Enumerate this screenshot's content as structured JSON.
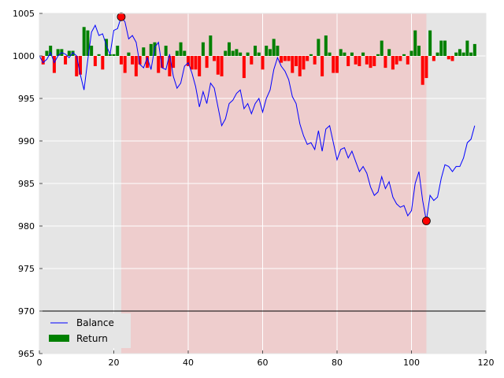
{
  "chart_data": {
    "type": "line",
    "title": "",
    "xlabel": "",
    "ylabel": "",
    "xlim": [
      0,
      120
    ],
    "ylim": [
      965,
      1005
    ],
    "xticks": [
      0,
      20,
      40,
      60,
      80,
      100,
      120
    ],
    "yticks": [
      965,
      970,
      975,
      980,
      985,
      990,
      995,
      1000,
      1005
    ],
    "grid": true,
    "legend_position": "lower-left",
    "reference_line": 970,
    "baseline": 1000,
    "shaded_region": {
      "x_start": 22,
      "x_end": 104,
      "color": "#f4bcbc"
    },
    "markers": [
      {
        "x": 22,
        "y": 1004.6
      },
      {
        "x": 104,
        "y": 980.6
      }
    ],
    "colors": {
      "balance": "#0000ff",
      "return_positive": "#008000",
      "return_negative": "#ff0000",
      "marker": "#ff0000",
      "background": "#e5e5e5"
    },
    "series": [
      {
        "name": "Balance",
        "type": "line",
        "x": [
          0,
          1,
          2,
          3,
          4,
          5,
          6,
          7,
          8,
          9,
          10,
          11,
          12,
          13,
          14,
          15,
          16,
          17,
          18,
          19,
          20,
          21,
          22,
          23,
          24,
          25,
          26,
          27,
          28,
          29,
          30,
          31,
          32,
          33,
          34,
          35,
          36,
          37,
          38,
          39,
          40,
          41,
          42,
          43,
          44,
          45,
          46,
          47,
          48,
          49,
          50,
          51,
          52,
          53,
          54,
          55,
          56,
          57,
          58,
          59,
          60,
          61,
          62,
          63,
          64,
          65,
          66,
          67,
          68,
          69,
          70,
          71,
          72,
          73,
          74,
          75,
          76,
          77,
          78,
          79,
          80,
          81,
          82,
          83,
          84,
          85,
          86,
          87,
          88,
          89,
          90,
          91,
          92,
          93,
          94,
          95,
          96,
          97,
          98,
          99,
          100,
          101,
          102,
          103,
          104,
          105,
          106,
          107,
          108,
          109,
          110,
          111,
          112,
          113,
          114,
          115,
          116,
          117
        ],
        "y": [
          1000.0,
          999.2,
          999.6,
          1000.4,
          999.2,
          1000.0,
          1000.4,
          1000.2,
          999.8,
          1000.4,
          1000.0,
          997.8,
          996.0,
          999.5,
          1002.8,
          1003.6,
          1002.4,
          1002.6,
          1001.2,
          1000.2,
          1003.0,
          1003.2,
          1004.6,
          1004.0,
          1002.0,
          1002.4,
          1001.6,
          999.0,
          998.6,
          999.8,
          998.4,
          1001.0,
          1001.6,
          998.6,
          998.4,
          1000.2,
          997.6,
          996.2,
          996.8,
          998.8,
          999.2,
          998.0,
          996.4,
          994.0,
          995.8,
          994.4,
          996.8,
          996.2,
          994.0,
          991.8,
          992.6,
          994.4,
          994.8,
          995.6,
          996.0,
          993.8,
          994.4,
          993.2,
          994.4,
          995.0,
          993.4,
          995.0,
          996.0,
          998.4,
          999.8,
          998.8,
          998.2,
          997.2,
          995.2,
          994.4,
          992.0,
          990.6,
          989.6,
          989.8,
          989.0,
          991.2,
          988.8,
          991.4,
          991.8,
          989.8,
          987.8,
          989.0,
          989.2,
          988.0,
          988.8,
          987.6,
          986.4,
          987.0,
          986.2,
          984.6,
          983.6,
          984.0,
          985.8,
          984.4,
          985.2,
          983.4,
          982.6,
          982.2,
          982.4,
          981.2,
          981.8,
          985.0,
          986.4,
          983.0,
          980.6,
          983.6,
          983.0,
          983.4,
          985.6,
          987.2,
          987.0,
          986.4,
          987.0,
          987.0,
          988.0,
          989.8,
          990.2,
          991.8
        ]
      },
      {
        "name": "Return",
        "type": "bar",
        "baseline": 1000,
        "x": [
          1,
          2,
          3,
          4,
          5,
          6,
          7,
          8,
          9,
          10,
          11,
          12,
          13,
          14,
          15,
          16,
          17,
          18,
          19,
          20,
          21,
          22,
          23,
          24,
          25,
          26,
          27,
          28,
          29,
          30,
          31,
          32,
          33,
          34,
          35,
          36,
          37,
          38,
          39,
          40,
          41,
          42,
          43,
          44,
          45,
          46,
          47,
          48,
          49,
          50,
          51,
          52,
          53,
          54,
          55,
          56,
          57,
          58,
          59,
          60,
          61,
          62,
          63,
          64,
          65,
          66,
          67,
          68,
          69,
          70,
          71,
          72,
          73,
          74,
          75,
          76,
          77,
          78,
          79,
          80,
          81,
          82,
          83,
          84,
          85,
          86,
          87,
          88,
          89,
          90,
          91,
          92,
          93,
          94,
          95,
          96,
          97,
          98,
          99,
          100,
          101,
          102,
          103,
          104,
          105,
          106,
          107,
          108,
          109,
          110,
          111,
          112,
          113,
          114,
          115,
          116,
          117
        ],
        "values": [
          -1.0,
          0.6,
          1.2,
          -2.0,
          0.8,
          0.8,
          -1.0,
          0.6,
          0.6,
          -2.4,
          -2.2,
          3.4,
          3.0,
          1.2,
          -1.2,
          0.2,
          -1.6,
          2.0,
          0.2,
          0.2,
          1.2,
          -1.0,
          -2.0,
          0.4,
          -1.0,
          -2.4,
          -1.0,
          1.0,
          -1.4,
          1.4,
          1.6,
          -2.0,
          -1.4,
          1.2,
          -2.4,
          -1.4,
          0.6,
          1.6,
          0.6,
          -1.2,
          -1.6,
          -1.6,
          -2.4,
          1.6,
          -1.4,
          2.4,
          -0.6,
          -2.2,
          -2.4,
          0.6,
          1.6,
          0.6,
          0.8,
          0.4,
          -2.6,
          0.4,
          -1.0,
          1.2,
          0.4,
          -1.6,
          1.2,
          0.8,
          2.0,
          1.2,
          -0.8,
          -0.6,
          -0.6,
          -2.0,
          -1.2,
          -2.4,
          -1.6,
          -0.6,
          0.2,
          -1.0,
          2.0,
          -2.4,
          2.4,
          0.4,
          -2.0,
          -2.0,
          0.8,
          0.4,
          -1.2,
          0.4,
          -1.0,
          -1.2,
          0.4,
          -1.0,
          -1.4,
          -1.2,
          0.2,
          1.8,
          -1.4,
          0.8,
          -1.6,
          -1.0,
          -0.6,
          0.2,
          -1.0,
          0.6,
          3.0,
          1.2,
          -3.4,
          -2.6,
          3.0,
          -0.6,
          0.4,
          1.8,
          1.8,
          -0.4,
          -0.6,
          0.4,
          0.8,
          0.4,
          1.8,
          0.4,
          1.4
        ]
      }
    ]
  }
}
